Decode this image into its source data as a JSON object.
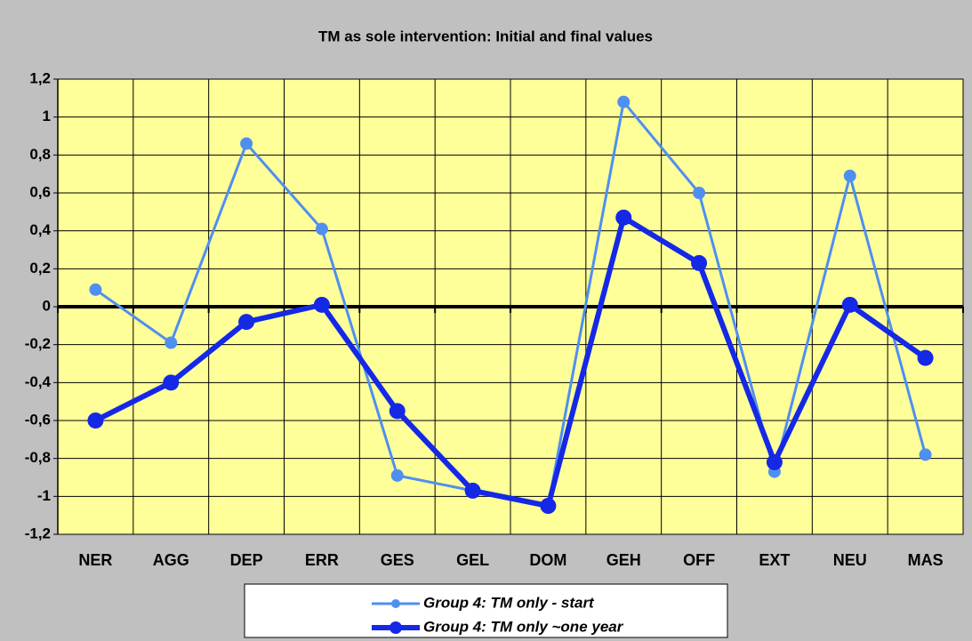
{
  "chart_data": {
    "type": "line",
    "title": "TM as sole intervention: Initial and final values",
    "categories": [
      "NER",
      "AGG",
      "DEP",
      "ERR",
      "GES",
      "GEL",
      "DOM",
      "GEH",
      "OFF",
      "EXT",
      "NEU",
      "MAS"
    ],
    "series": [
      {
        "name": "Group 4: TM only - start",
        "color": "#4f8ff0",
        "values": [
          0.09,
          -0.19,
          0.86,
          0.41,
          -0.89,
          -0.97,
          -1.05,
          1.08,
          0.6,
          -0.87,
          0.69,
          -0.78
        ]
      },
      {
        "name": "Group 4: TM only ~one year",
        "color": "#1428e6",
        "values": [
          -0.6,
          -0.4,
          -0.08,
          0.01,
          -0.55,
          -0.97,
          -1.05,
          0.47,
          0.23,
          -0.82,
          0.01,
          -0.27
        ]
      }
    ],
    "ylim": [
      -1.2,
      1.2
    ],
    "yticks": [
      {
        "value": -1.2,
        "label": "-1,2"
      },
      -1,
      {
        "value": -0.8,
        "label": "-0,8"
      },
      {
        "value": -0.6,
        "label": "-0,6"
      },
      {
        "value": -0.4,
        "label": "-0,4"
      },
      {
        "value": -0.2,
        "label": "-0,2"
      },
      0,
      {
        "value": 0.2,
        "label": "0,2"
      },
      {
        "value": 0.4,
        "label": "0,4"
      },
      {
        "value": 0.6,
        "label": "0,6"
      },
      {
        "value": 0.8,
        "label": "0,8"
      },
      1,
      {
        "value": 1.2,
        "label": "1,2"
      }
    ],
    "grid": true,
    "legend": "bottom"
  }
}
